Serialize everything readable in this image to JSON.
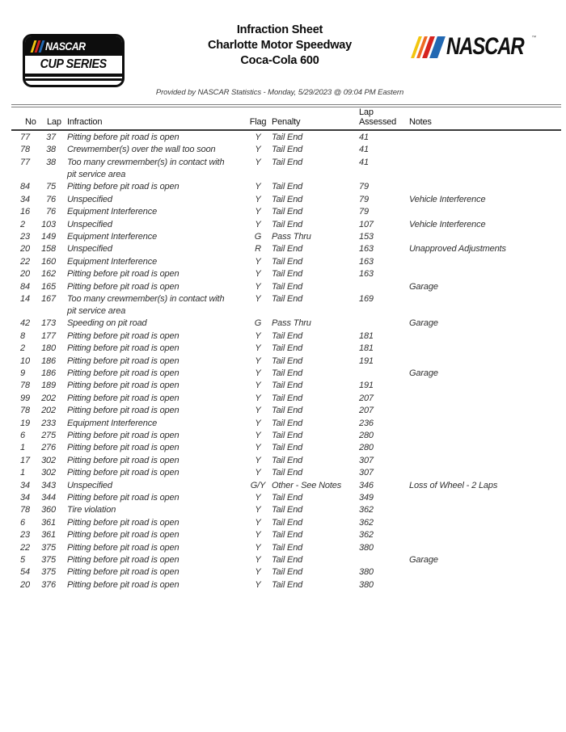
{
  "header": {
    "title_lines": [
      "Infraction Sheet",
      "Charlotte Motor Speedway",
      "Coca-Cola 600"
    ],
    "provided_by": "Provided by NASCAR Statistics - Monday, 5/29/2023 @ 09:04 PM Eastern",
    "cup_logo": {
      "line1": "NASCAR",
      "line2": "CUP SERIES"
    },
    "nascar_logo": {
      "text": "NASCAR",
      "trademark": "™"
    }
  },
  "brand_colors": {
    "yellow": "#F2C50F",
    "orange": "#EF6A23",
    "red": "#D6231F",
    "blue": "#2268B2",
    "black": "#0d0d0d"
  },
  "table": {
    "columns": {
      "no": "No",
      "lap": "Lap",
      "infraction": "Infraction",
      "flag": "Flag",
      "penalty": "Penalty",
      "lap_assessed": "Lap\nAssessed",
      "notes": "Notes"
    },
    "rows": [
      {
        "no": "77",
        "lap": "37",
        "infraction": "Pitting before pit road is open",
        "flag": "Y",
        "penalty": "Tail End",
        "lap_assessed": "41",
        "notes": ""
      },
      {
        "no": "78",
        "lap": "38",
        "infraction": "Crewmember(s) over the wall too soon",
        "flag": "Y",
        "penalty": "Tail End",
        "lap_assessed": "41",
        "notes": ""
      },
      {
        "no": "77",
        "lap": "38",
        "infraction": "Too many crewmember(s) in contact with\npit service area",
        "flag": "Y",
        "penalty": "Tail End",
        "lap_assessed": "41",
        "notes": ""
      },
      {
        "no": "84",
        "lap": "75",
        "infraction": "Pitting before pit road is open",
        "flag": "Y",
        "penalty": "Tail End",
        "lap_assessed": "79",
        "notes": ""
      },
      {
        "no": "34",
        "lap": "76",
        "infraction": "Unspecified",
        "flag": "Y",
        "penalty": "Tail End",
        "lap_assessed": "79",
        "notes": "Vehicle Interference"
      },
      {
        "no": "16",
        "lap": "76",
        "infraction": "Equipment Interference",
        "flag": "Y",
        "penalty": "Tail End",
        "lap_assessed": "79",
        "notes": ""
      },
      {
        "no": "2",
        "lap": "103",
        "infraction": "Unspecified",
        "flag": "Y",
        "penalty": "Tail End",
        "lap_assessed": "107",
        "notes": "Vehicle Interference"
      },
      {
        "no": "23",
        "lap": "149",
        "infraction": "Equipment Interference",
        "flag": "G",
        "penalty": "Pass Thru",
        "lap_assessed": "153",
        "notes": ""
      },
      {
        "no": "20",
        "lap": "158",
        "infraction": "Unspecified",
        "flag": "R",
        "penalty": "Tail End",
        "lap_assessed": "163",
        "notes": "Unapproved Adjustments"
      },
      {
        "no": "22",
        "lap": "160",
        "infraction": "Equipment Interference",
        "flag": "Y",
        "penalty": "Tail End",
        "lap_assessed": "163",
        "notes": ""
      },
      {
        "no": "20",
        "lap": "162",
        "infraction": "Pitting before pit road is open",
        "flag": "Y",
        "penalty": "Tail End",
        "lap_assessed": "163",
        "notes": ""
      },
      {
        "no": "84",
        "lap": "165",
        "infraction": "Pitting before pit road is open",
        "flag": "Y",
        "penalty": "Tail End",
        "lap_assessed": "",
        "notes": "Garage"
      },
      {
        "no": "14",
        "lap": "167",
        "infraction": "Too many crewmember(s) in contact with\npit service area",
        "flag": "Y",
        "penalty": "Tail End",
        "lap_assessed": "169",
        "notes": ""
      },
      {
        "no": "42",
        "lap": "173",
        "infraction": "Speeding on pit road",
        "flag": "G",
        "penalty": "Pass Thru",
        "lap_assessed": "",
        "notes": "Garage"
      },
      {
        "no": "8",
        "lap": "177",
        "infraction": "Pitting before pit road is open",
        "flag": "Y",
        "penalty": "Tail End",
        "lap_assessed": "181",
        "notes": ""
      },
      {
        "no": "2",
        "lap": "180",
        "infraction": "Pitting before pit road is open",
        "flag": "Y",
        "penalty": "Tail End",
        "lap_assessed": "181",
        "notes": ""
      },
      {
        "no": "10",
        "lap": "186",
        "infraction": "Pitting before pit road is open",
        "flag": "Y",
        "penalty": "Tail End",
        "lap_assessed": "191",
        "notes": ""
      },
      {
        "no": "9",
        "lap": "186",
        "infraction": "Pitting before pit road is open",
        "flag": "Y",
        "penalty": "Tail End",
        "lap_assessed": "",
        "notes": "Garage"
      },
      {
        "no": "78",
        "lap": "189",
        "infraction": "Pitting before pit road is open",
        "flag": "Y",
        "penalty": "Tail End",
        "lap_assessed": "191",
        "notes": ""
      },
      {
        "no": "99",
        "lap": "202",
        "infraction": "Pitting before pit road is open",
        "flag": "Y",
        "penalty": "Tail End",
        "lap_assessed": "207",
        "notes": ""
      },
      {
        "no": "78",
        "lap": "202",
        "infraction": "Pitting before pit road is open",
        "flag": "Y",
        "penalty": "Tail End",
        "lap_assessed": "207",
        "notes": ""
      },
      {
        "no": "19",
        "lap": "233",
        "infraction": "Equipment Interference",
        "flag": "Y",
        "penalty": "Tail End",
        "lap_assessed": "236",
        "notes": ""
      },
      {
        "no": "6",
        "lap": "275",
        "infraction": "Pitting before pit road is open",
        "flag": "Y",
        "penalty": "Tail End",
        "lap_assessed": "280",
        "notes": ""
      },
      {
        "no": "1",
        "lap": "276",
        "infraction": "Pitting before pit road is open",
        "flag": "Y",
        "penalty": "Tail End",
        "lap_assessed": "280",
        "notes": ""
      },
      {
        "no": "17",
        "lap": "302",
        "infraction": "Pitting before pit road is open",
        "flag": "Y",
        "penalty": "Tail End",
        "lap_assessed": "307",
        "notes": ""
      },
      {
        "no": "1",
        "lap": "302",
        "infraction": "Pitting before pit road is open",
        "flag": "Y",
        "penalty": "Tail End",
        "lap_assessed": "307",
        "notes": ""
      },
      {
        "no": "34",
        "lap": "343",
        "infraction": "Unspecified",
        "flag": "G/Y",
        "penalty": "Other - See Notes",
        "lap_assessed": "346",
        "notes": "Loss of Wheel - 2 Laps"
      },
      {
        "no": "34",
        "lap": "344",
        "infraction": "Pitting before pit road is open",
        "flag": "Y",
        "penalty": "Tail End",
        "lap_assessed": "349",
        "notes": ""
      },
      {
        "no": "78",
        "lap": "360",
        "infraction": "Tire violation",
        "flag": "Y",
        "penalty": "Tail End",
        "lap_assessed": "362",
        "notes": ""
      },
      {
        "no": "6",
        "lap": "361",
        "infraction": "Pitting before pit road is open",
        "flag": "Y",
        "penalty": "Tail End",
        "lap_assessed": "362",
        "notes": ""
      },
      {
        "no": "23",
        "lap": "361",
        "infraction": "Pitting before pit road is open",
        "flag": "Y",
        "penalty": "Tail End",
        "lap_assessed": "362",
        "notes": ""
      },
      {
        "no": "22",
        "lap": "375",
        "infraction": "Pitting before pit road is open",
        "flag": "Y",
        "penalty": "Tail End",
        "lap_assessed": "380",
        "notes": ""
      },
      {
        "no": "5",
        "lap": "375",
        "infraction": "Pitting before pit road is open",
        "flag": "Y",
        "penalty": "Tail End",
        "lap_assessed": "",
        "notes": "Garage"
      },
      {
        "no": "54",
        "lap": "375",
        "infraction": "Pitting before pit road is open",
        "flag": "Y",
        "penalty": "Tail End",
        "lap_assessed": "380",
        "notes": ""
      },
      {
        "no": "20",
        "lap": "376",
        "infraction": "Pitting before pit road is open",
        "flag": "Y",
        "penalty": "Tail End",
        "lap_assessed": "380",
        "notes": ""
      }
    ]
  }
}
